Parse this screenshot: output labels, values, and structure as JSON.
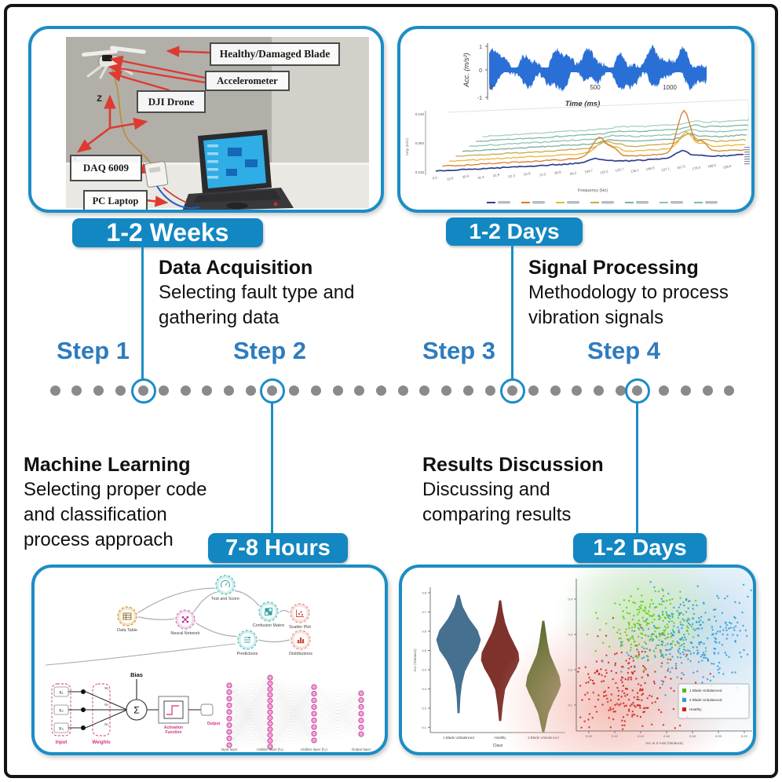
{
  "accent": {
    "blue": "#1b8dc5",
    "badge_bg": "#1287c2",
    "step_text": "#2e7cbe",
    "dot_gray": "#8a8a8a"
  },
  "badges": {
    "week": "1-2 Weeks",
    "days_top": "1-2 Days",
    "hours": "7-8 Hours",
    "days_bottom": "1-2 Days"
  },
  "steps": [
    "Step 1",
    "Step 2",
    "Step 3",
    "Step 4"
  ],
  "blocks": {
    "data_acquisition": {
      "title": "Data Acquisition",
      "body": "Selecting fault type and gathering data"
    },
    "signal_processing": {
      "title": "Signal Processing",
      "body": "Methodology to process vibration signals"
    },
    "machine_learning": {
      "title": "Machine Learning",
      "body": "Selecting proper code and classification process approach"
    },
    "results_discussion": {
      "title": "Results Discussion",
      "body": "Discussing and comparing results"
    }
  },
  "photo": {
    "labels": {
      "blade": "Healthy/Damaged Blade",
      "accelerometer": "Accelerometer",
      "drone": "DJI Drone",
      "daq": "DAQ 6009",
      "laptop": "PC Laptop"
    },
    "axis_z": "Z",
    "axis_x": "X"
  },
  "waveform": {
    "ylabel": "Acc. (m/s²)",
    "xlabel": "Time (ms)",
    "yticks": [
      "1",
      "0",
      "-1"
    ],
    "xticks": [
      "0",
      "500",
      "1000"
    ],
    "color": "#2a6fd6"
  },
  "waterfall": {
    "xlabel": "Frequency (Hz)",
    "yticks": [
      "0.100",
      "0.050",
      "0.016"
    ],
    "xticks": [
      "0.0",
      "10.5",
      "20.9",
      "31.4",
      "41.9",
      "52.3",
      "62.8",
      "73.3",
      "83.8",
      "94.2",
      "104.7",
      "115.2",
      "125.7",
      "136.1",
      "146.6",
      "157.1",
      "167.5",
      "178.0",
      "188.5",
      "199.0"
    ],
    "series_colors": [
      "#2e3f8f",
      "#d97b28",
      "#e8b63a",
      "#caa84a",
      "#79b0a0",
      "#8fc3b0",
      "#7fb8a8",
      "#a8cfc0"
    ],
    "legend_entries": 7
  },
  "workflow": {
    "nodes": [
      {
        "label": "Data Table",
        "icon": "data-table-icon",
        "color": "#d9a33c"
      },
      {
        "label": "Neural Network",
        "icon": "neural-network-icon",
        "color": "#d884b8"
      },
      {
        "label": "Test and Score",
        "icon": "test-score-icon",
        "color": "#63c4c2"
      },
      {
        "label": "Confusion Matrix",
        "icon": "confusion-matrix-icon",
        "color": "#63c4c2"
      },
      {
        "label": "Scatter Plot",
        "icon": "scatter-plot-icon",
        "color": "#ef9a8f"
      },
      {
        "label": "Predictions",
        "icon": "predictions-icon",
        "color": "#63c4c2"
      },
      {
        "label": "Distributions",
        "icon": "distributions-icon",
        "color": "#ef9a8f"
      }
    ]
  },
  "perceptron": {
    "bias": "Bias",
    "input": "Input",
    "weights": "Weights",
    "sigma": "Σ",
    "activation_1": "Activation",
    "activation_2": "Function",
    "output": "Output",
    "inputs": [
      "x₁",
      "x₂",
      "x₃"
    ],
    "weight_labels": [
      "w₁",
      "w₂",
      "w₃"
    ]
  },
  "nn_layers": [
    "Input layer",
    "Hidden layer (h₁)",
    "Hidden layer (h₂)",
    "Output layer"
  ],
  "violin": {
    "categories": [
      "1 Blade Unbalanced",
      "Healthy",
      "2 Blade Unbalanced"
    ],
    "colors": [
      "#46708f",
      "#7e322c",
      "#5f7030"
    ],
    "xlabel": "Class",
    "yticks": [
      "0.8",
      "0.7",
      "0.6",
      "0.5",
      "0.4",
      "0.3",
      "0.2",
      "0.1"
    ],
    "ylabel": "Acc (Variance)"
  },
  "scatter": {
    "xlabel": "Acc in X Axis (Variance)",
    "xticks": [
      "0.10",
      "0.12",
      "0.14",
      "0.16",
      "0.18",
      "0.20",
      "0.22"
    ],
    "yticks": [
      "0.4",
      "0.3",
      "0.2",
      "0.1"
    ],
    "legend": [
      {
        "label": "1 Blade Unbalanced",
        "color": "#55b811"
      },
      {
        "label": "2 Blade Unbalanced",
        "color": "#2a9ad6"
      },
      {
        "label": "Healthy",
        "color": "#cc2218"
      }
    ],
    "cluster_colors": {
      "red": "#cc2218",
      "green": "#55cc11",
      "blue": "#2a9ad6"
    }
  }
}
